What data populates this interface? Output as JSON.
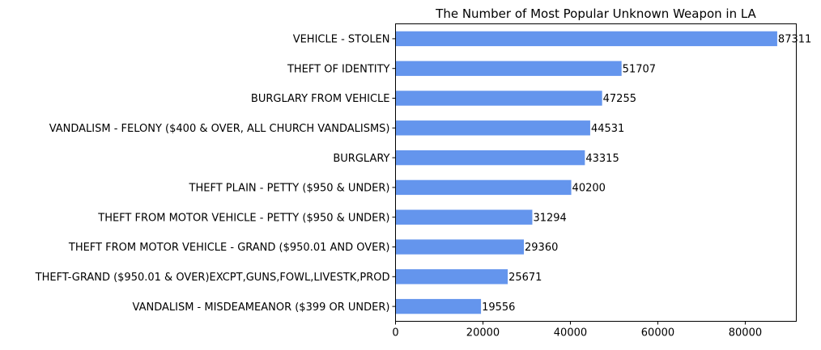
{
  "chart_data": {
    "type": "bar",
    "orientation": "horizontal",
    "title": "The Number of Most Popular Unknown Weapon in LA",
    "xlabel": "",
    "ylabel": "",
    "categories": [
      "VEHICLE - STOLEN",
      "THEFT OF IDENTITY",
      "BURGLARY FROM VEHICLE",
      "VANDALISM - FELONY ($400 & OVER, ALL CHURCH VANDALISMS)",
      "BURGLARY",
      "THEFT PLAIN - PETTY ($950 & UNDER)",
      "THEFT FROM MOTOR VEHICLE - PETTY ($950 & UNDER)",
      "THEFT FROM MOTOR VEHICLE - GRAND ($950.01 AND OVER)",
      "THEFT-GRAND ($950.01 & OVER)EXCPT,GUNS,FOWL,LIVESTK,PROD",
      "VANDALISM - MISDEAMEANOR ($399 OR UNDER)"
    ],
    "values": [
      87311,
      51707,
      47255,
      44531,
      43315,
      40200,
      31294,
      29360,
      25671,
      19556
    ],
    "xlim": [
      0,
      91677
    ],
    "xticks": [
      0,
      20000,
      40000,
      60000,
      80000
    ],
    "bar_color": "#6495ED",
    "grid": false,
    "legend": "none"
  }
}
